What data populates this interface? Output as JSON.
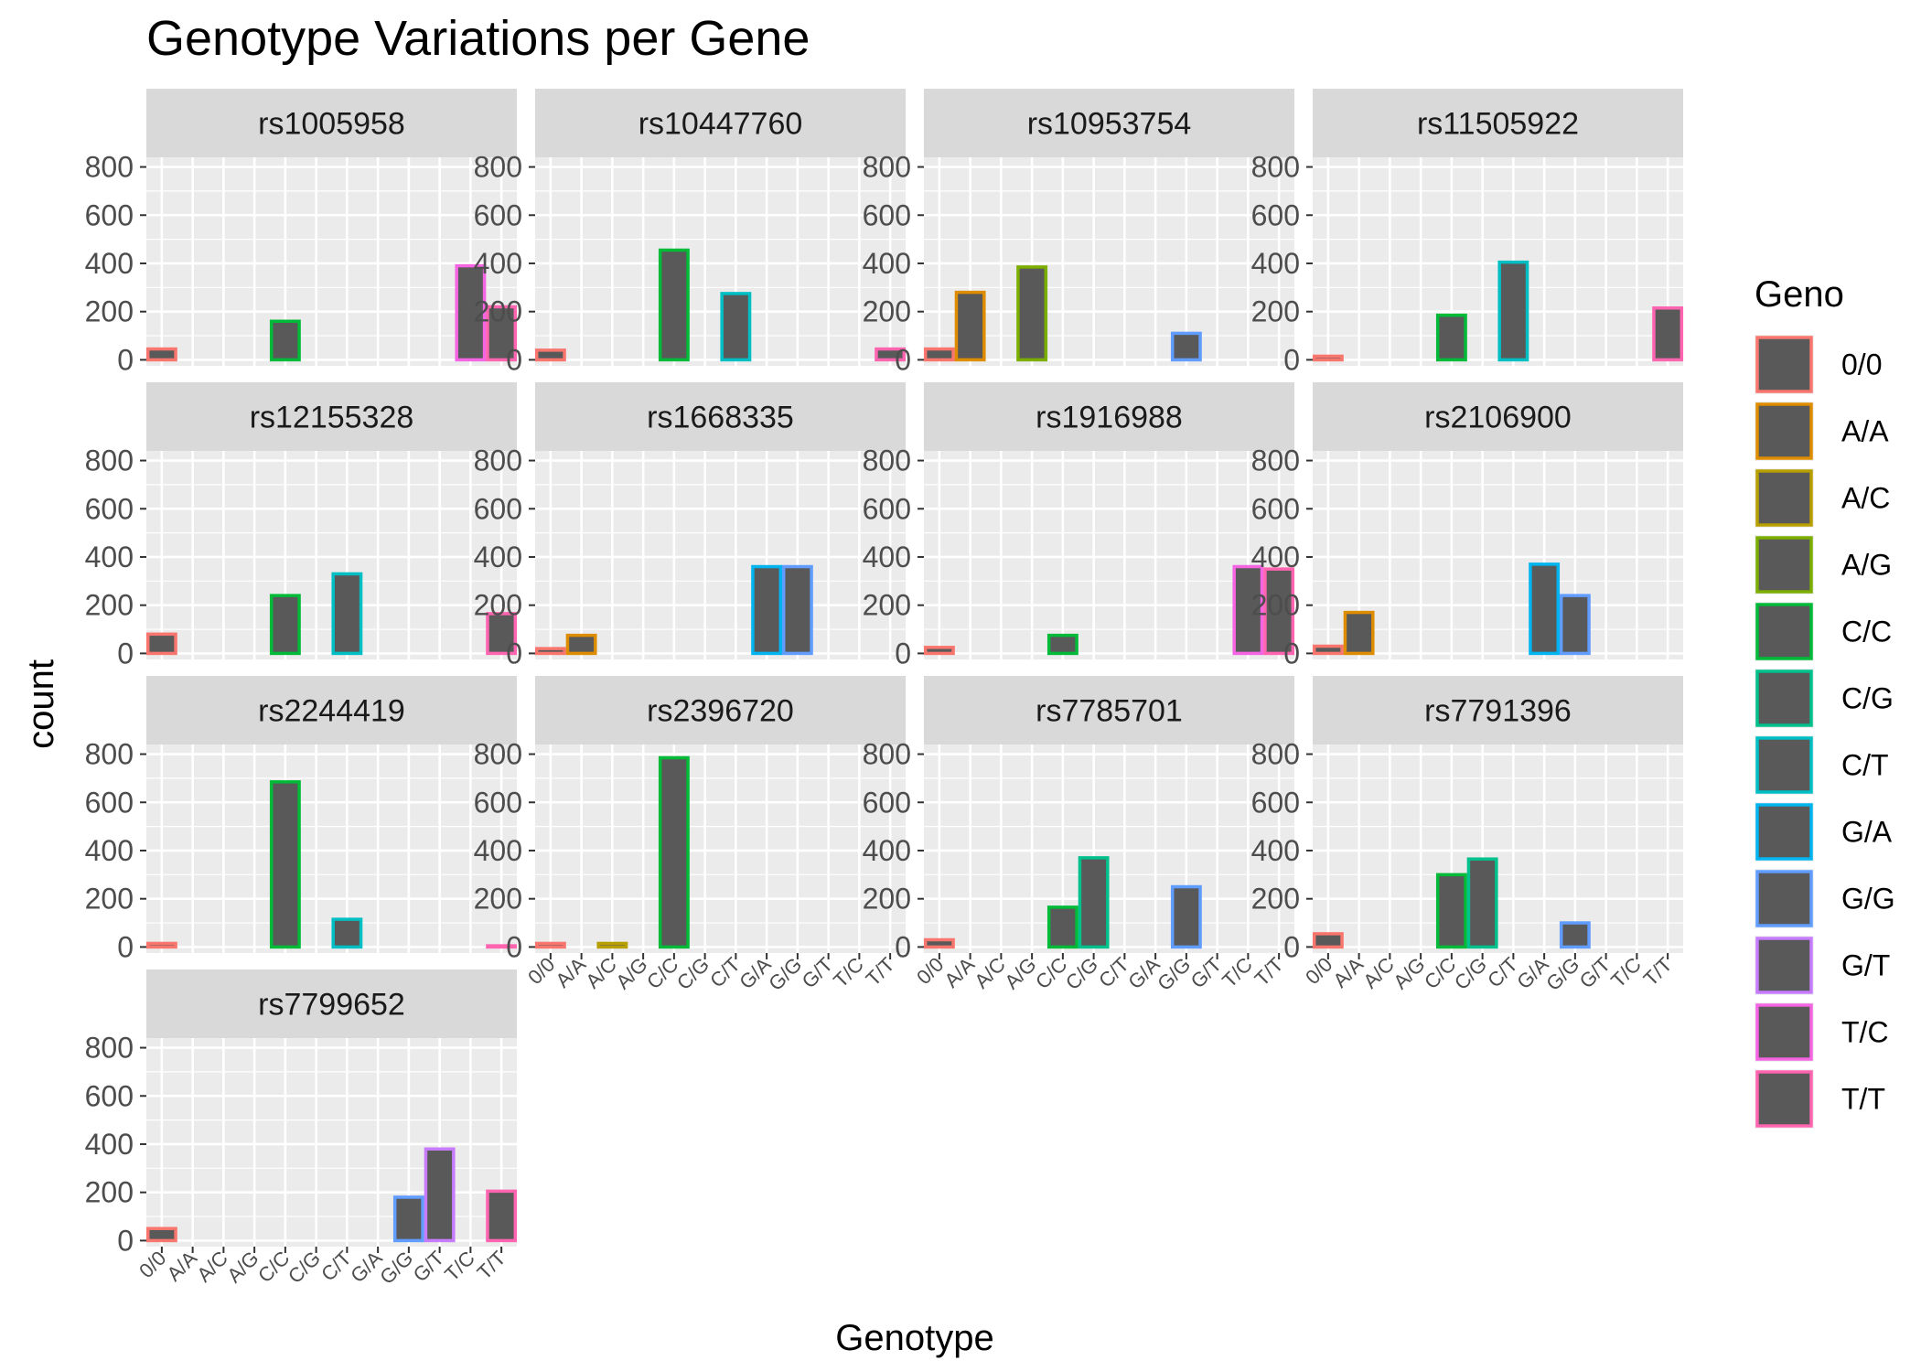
{
  "chart_data": {
    "type": "bar",
    "title": "Genotype Variations per Gene",
    "xlabel": "Genotype",
    "ylabel": "count",
    "ylim": [
      -25,
      840
    ],
    "yticks": [
      0,
      200,
      400,
      600,
      800
    ],
    "categories": [
      "0/0",
      "A/A",
      "A/C",
      "A/G",
      "C/C",
      "C/G",
      "C/T",
      "G/A",
      "G/G",
      "G/T",
      "T/C",
      "T/T"
    ],
    "facet_columns": 4,
    "legend": {
      "title": "Geno",
      "position": "right",
      "items": [
        "0/0",
        "A/A",
        "A/C",
        "A/G",
        "C/C",
        "C/G",
        "C/T",
        "G/A",
        "G/G",
        "G/T",
        "T/C",
        "T/T"
      ]
    },
    "colors": {
      "0/0": "#F8766D",
      "A/A": "#DE8C00",
      "A/C": "#B79F00",
      "A/G": "#7CAE00",
      "C/C": "#00BA38",
      "C/G": "#00C08B",
      "C/T": "#00BFC4",
      "G/A": "#00B4F0",
      "G/G": "#619CFF",
      "G/T": "#C77CFF",
      "T/C": "#F564E3",
      "T/T": "#FF64B0"
    },
    "fill_color": "#595959",
    "grid": true,
    "panels": [
      {
        "name": "rs1005958",
        "values": {
          "0/0": 45,
          "C/C": 160,
          "T/C": 390,
          "T/T": 220
        }
      },
      {
        "name": "rs10447760",
        "values": {
          "0/0": 40,
          "C/C": 455,
          "C/T": 275,
          "T/T": 45
        }
      },
      {
        "name": "rs10953754",
        "values": {
          "0/0": 45,
          "A/A": 280,
          "A/G": 385,
          "G/G": 110
        }
      },
      {
        "name": "rs11505922",
        "values": {
          "0/0": 15,
          "C/C": 185,
          "C/T": 405,
          "T/T": 215
        }
      },
      {
        "name": "rs12155328",
        "values": {
          "0/0": 80,
          "C/C": 240,
          "C/T": 330,
          "T/T": 165
        }
      },
      {
        "name": "rs1668335",
        "values": {
          "0/0": 20,
          "A/A": 75,
          "G/A": 360,
          "G/G": 360
        }
      },
      {
        "name": "rs1916988",
        "values": {
          "0/0": 25,
          "C/C": 75,
          "T/C": 360,
          "T/T": 350
        }
      },
      {
        "name": "rs2106900",
        "values": {
          "0/0": 30,
          "A/A": 170,
          "G/A": 370,
          "G/G": 240
        }
      },
      {
        "name": "rs2244419",
        "values": {
          "0/0": 15,
          "C/C": 685,
          "C/T": 115,
          "T/T": 5
        }
      },
      {
        "name": "rs2396720",
        "values": {
          "0/0": 15,
          "A/C": 15,
          "C/C": 785
        }
      },
      {
        "name": "rs7785701",
        "values": {
          "0/0": 30,
          "C/C": 165,
          "C/G": 370,
          "G/G": 250
        }
      },
      {
        "name": "rs7791396",
        "values": {
          "0/0": 55,
          "C/C": 300,
          "C/G": 365,
          "G/G": 100
        }
      },
      {
        "name": "rs7799652",
        "values": {
          "0/0": 50,
          "G/G": 180,
          "G/T": 380,
          "T/T": 205
        }
      }
    ]
  }
}
